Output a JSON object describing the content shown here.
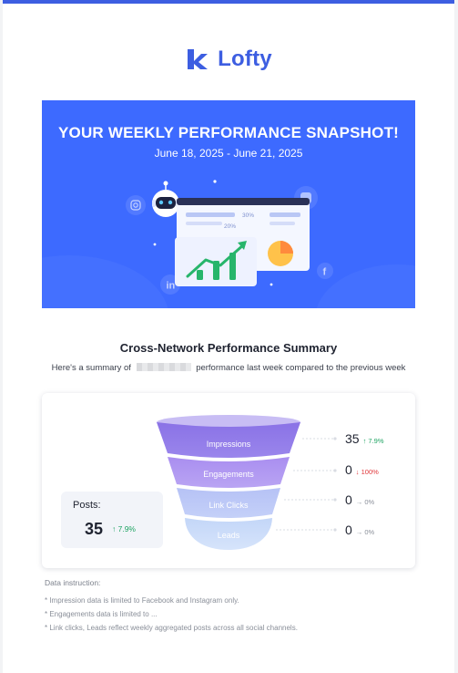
{
  "brand": {
    "name": "Lofty",
    "color": "#3d5ee1"
  },
  "banner": {
    "title": "YOUR WEEKLY PERFORMANCE SNAPSHOT!",
    "date_range": "June 18, 2025 - June 21, 2025",
    "background": "#3d6aff",
    "dashboard_labels": [
      "30%",
      "20%"
    ],
    "icons": [
      "robot-icon",
      "instagram-icon",
      "linkedin-icon",
      "facebook-icon",
      "chart-icon",
      "pie-chart-icon"
    ]
  },
  "summary": {
    "title": "Cross-Network Performance Summary",
    "subtitle_before": "Here's a summary of",
    "subtitle_after": "performance last week compared to the previous week"
  },
  "posts": {
    "label": "Posts:",
    "value": "35",
    "change": "↑ 7.9%",
    "trend": "up"
  },
  "funnel": {
    "stages": [
      {
        "label": "Impressions",
        "value": "35",
        "change": "↑ 7.9%",
        "trend": "up"
      },
      {
        "label": "Engagements",
        "value": "0",
        "change": "↓ 100%",
        "trend": "down"
      },
      {
        "label": "Link Clicks",
        "value": "0",
        "change": "→ 0%",
        "trend": "flat"
      },
      {
        "label": "Leads",
        "value": "0",
        "change": "→ 0%",
        "trend": "flat"
      }
    ]
  },
  "instructions": {
    "title": "Data instruction:",
    "items": [
      "* Impression data is limited to Facebook and Instagram only.",
      "* Engagements data is limited to ...",
      "* Link clicks, Leads reflect weekly aggregated posts across all social channels."
    ]
  }
}
